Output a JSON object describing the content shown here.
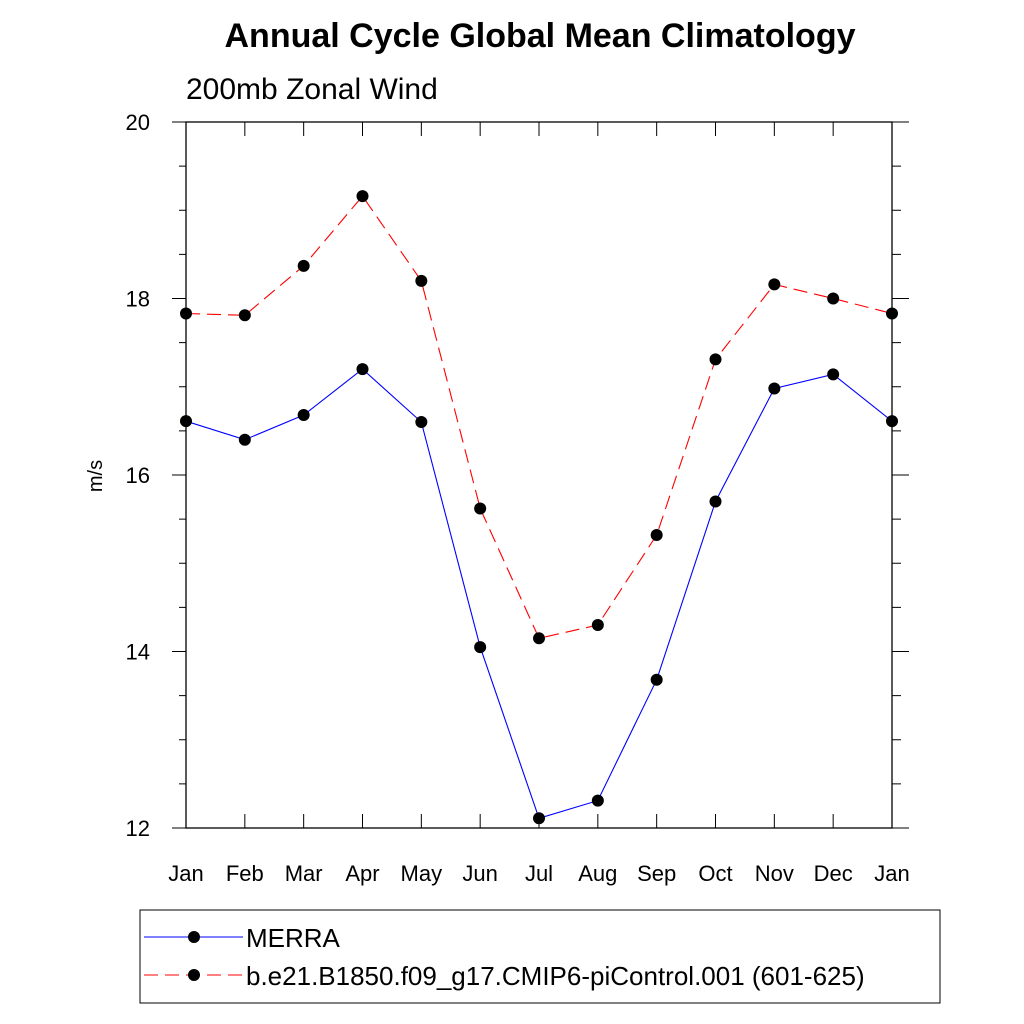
{
  "chart_data": {
    "type": "line",
    "title": "Annual Cycle Global Mean Climatology",
    "subtitle": "200mb Zonal Wind",
    "xlabel": "",
    "ylabel": "m/s",
    "categories": [
      "Jan",
      "Feb",
      "Mar",
      "Apr",
      "May",
      "Jun",
      "Jul",
      "Aug",
      "Sep",
      "Oct",
      "Nov",
      "Dec",
      "Jan"
    ],
    "ylim": [
      12,
      20
    ],
    "yticks": [
      12,
      14,
      16,
      18,
      20
    ],
    "grid": false,
    "legend_position": "bottom",
    "series": [
      {
        "name": "MERRA",
        "color": "#0000ff",
        "dash": "solid",
        "marker": "filled-circle",
        "values": [
          16.61,
          16.4,
          16.68,
          17.2,
          16.6,
          14.05,
          12.11,
          12.31,
          13.68,
          15.7,
          16.98,
          17.14,
          16.61
        ]
      },
      {
        "name": "b.e21.B1850.f09_g17.CMIP6-piControl.001 (601-625)",
        "color": "#ff0000",
        "dash": "dashed",
        "marker": "filled-circle",
        "values": [
          17.83,
          17.81,
          18.37,
          19.16,
          18.2,
          15.62,
          14.15,
          14.3,
          15.32,
          17.31,
          18.16,
          18.0,
          17.83
        ]
      }
    ]
  }
}
